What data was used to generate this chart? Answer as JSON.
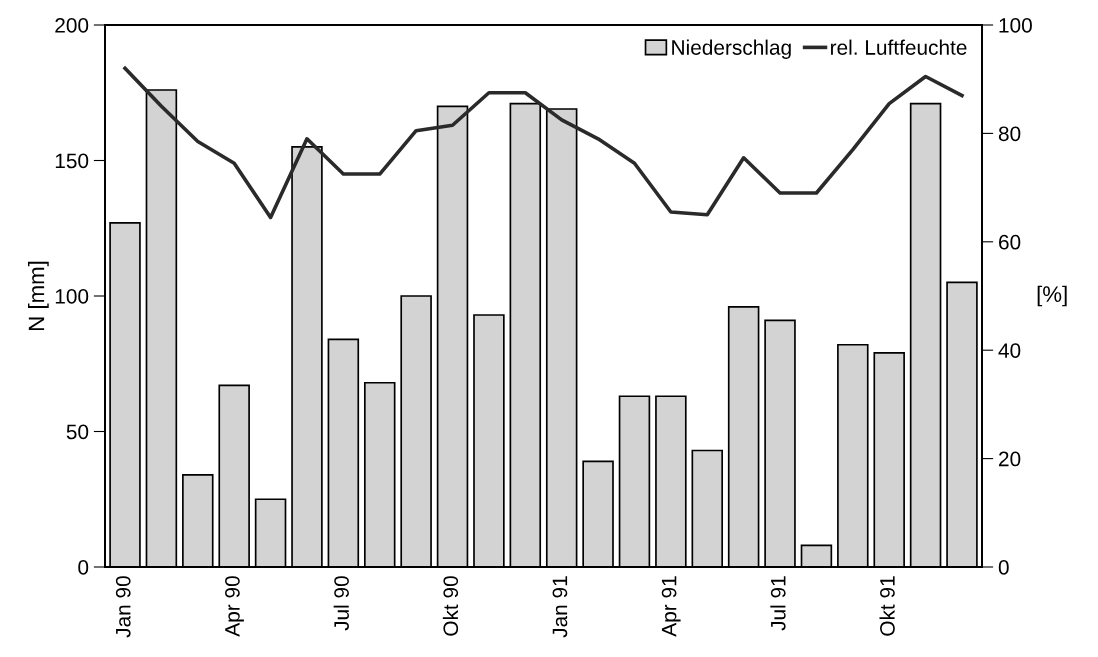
{
  "chart_data": {
    "type": "bar",
    "categories": [
      "Jan 90",
      null,
      null,
      "Apr 90",
      null,
      null,
      "Jul 90",
      null,
      null,
      "Okt 90",
      null,
      null,
      "Jan 91",
      null,
      null,
      "Apr 91",
      null,
      null,
      "Jul 91",
      null,
      null,
      "Okt 91",
      null,
      null
    ],
    "series": [
      {
        "name": "Niederschlag",
        "color": "#d3d3d3",
        "values": [
          127,
          176,
          34,
          67,
          25,
          155,
          84,
          68,
          100,
          170,
          93,
          171,
          169,
          39,
          63,
          63,
          43,
          96,
          91,
          8,
          82,
          79,
          171,
          105
        ]
      },
      {
        "name": "rel. Luftfeuchte",
        "type": "line",
        "axis": "y2",
        "color": "#2a2a2a",
        "values": [
          92,
          85,
          78.5,
          74.5,
          64.5,
          79,
          72.5,
          72.5,
          80.5,
          81.5,
          87.5,
          87.5,
          82.5,
          79,
          74.5,
          65.5,
          65,
          75.5,
          69,
          69,
          77,
          85.5,
          90.5,
          87
        ]
      }
    ],
    "ylabel": "N [mm]",
    "y2label": "[%]",
    "ylim": [
      0,
      200
    ],
    "yticks": [
      0,
      50,
      100,
      150,
      200
    ],
    "y2lim": [
      0,
      100
    ],
    "y2ticks": [
      0,
      20,
      40,
      60,
      80,
      100
    ],
    "legend": "top right",
    "marker": "none",
    "line_style": "solid"
  }
}
